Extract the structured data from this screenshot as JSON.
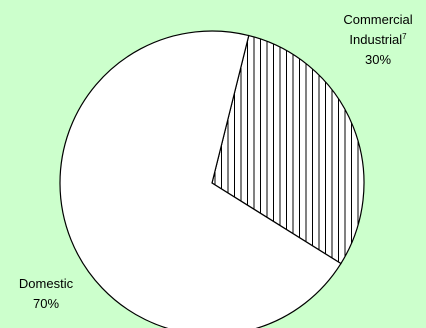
{
  "colors": {
    "background": "#ccffcc",
    "slice_fill": "#ffffff",
    "outline": "#000000",
    "hatch": "#000000"
  },
  "chart_data": {
    "type": "pie",
    "title": "",
    "slices": [
      {
        "label_line1": "Commercial",
        "label_line2": "Industrial",
        "footnote": "7",
        "percent_label": "30%",
        "value": 30,
        "pattern": "vertical-hatch"
      },
      {
        "label_line1": "Domestic",
        "percent_label": "70%",
        "value": 70,
        "pattern": "solid-white"
      }
    ]
  }
}
